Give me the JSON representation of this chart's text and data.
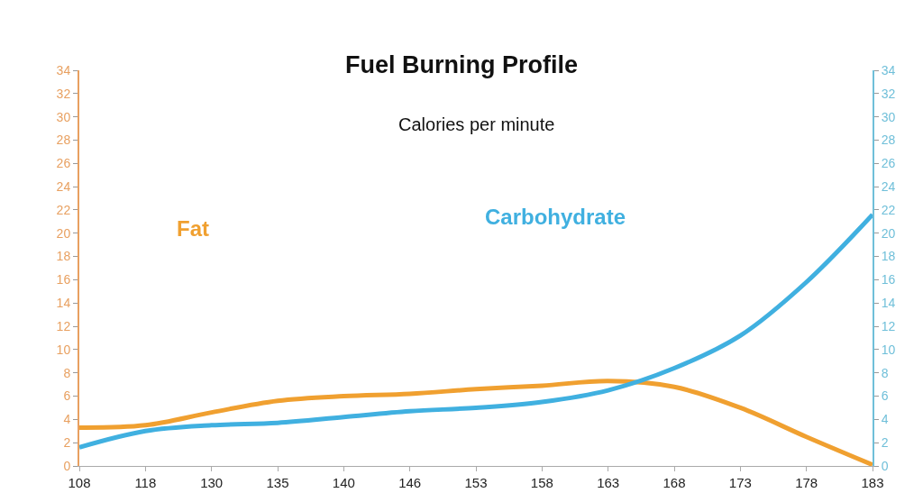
{
  "chart_data": {
    "type": "line",
    "title": "Fuel Burning Profile",
    "subtitle": "Calories per minute",
    "categories": [
      "108",
      "118",
      "130",
      "135",
      "140",
      "146",
      "153",
      "158",
      "163",
      "168",
      "173",
      "178",
      "183"
    ],
    "series": [
      {
        "name": "Fat",
        "color": "#f0a030",
        "values": [
          3.3,
          3.5,
          4.6,
          5.6,
          6.0,
          6.2,
          6.6,
          6.9,
          7.3,
          6.8,
          5.0,
          2.5,
          0.1
        ]
      },
      {
        "name": "Carbohydrate",
        "color": "#40b0e0",
        "axis": "y2",
        "values": [
          1.6,
          3.0,
          3.5,
          3.7,
          4.2,
          4.7,
          5.0,
          5.5,
          6.5,
          8.4,
          11.2,
          15.8,
          21.6
        ]
      }
    ],
    "ylim": [
      0,
      34
    ],
    "yticks": [
      0,
      2,
      4,
      6,
      8,
      10,
      12,
      14,
      16,
      18,
      20,
      22,
      24,
      26,
      28,
      30,
      32,
      34
    ],
    "y2lim": [
      0,
      34
    ],
    "y2ticks": [
      0,
      2,
      4,
      6,
      8,
      10,
      12,
      14,
      16,
      18,
      20,
      22,
      24,
      26,
      28,
      30,
      32,
      34
    ],
    "grid": false,
    "legend": false,
    "marker": "none",
    "line_style": "solid"
  }
}
